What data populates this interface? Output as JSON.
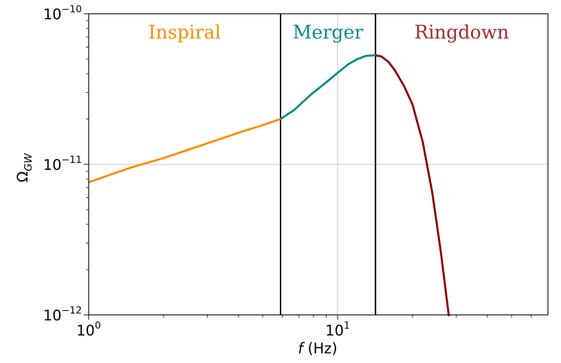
{
  "chart_data": {
    "type": "line",
    "xlabel_var": "f",
    "xlabel_unit": " (Hz)",
    "ylabel_main": "Ω",
    "ylabel_sub": "GW",
    "xscale": "log",
    "yscale": "log",
    "xlim": [
      1,
      70
    ],
    "ylim": [
      1e-12,
      1e-10
    ],
    "x_ticks": [
      {
        "value": 1,
        "base": "10",
        "exp": "0"
      },
      {
        "value": 10,
        "base": "10",
        "exp": "1"
      }
    ],
    "y_ticks": [
      {
        "value": 1e-12,
        "base": "10",
        "exp": "−12"
      },
      {
        "value": 1e-11,
        "base": "10",
        "exp": "−11"
      },
      {
        "value": 1e-10,
        "base": "10",
        "exp": "−10"
      }
    ],
    "grid": "major",
    "phase_boundaries": [
      5.9,
      14.2
    ],
    "series": [
      {
        "color": "#ff8c00",
        "x": [
          1.0,
          1.5,
          2.0,
          3.0,
          4.0,
          5.0,
          5.9
        ],
        "y": [
          7.6e-12,
          9.6e-12,
          1.1e-11,
          1.38e-11,
          1.62e-11,
          1.82e-11,
          2e-11
        ]
      },
      {
        "color": "#008b8b",
        "x": [
          5.9,
          6.7,
          7.8,
          9.0,
          10.0,
          11.0,
          12.0,
          13.0,
          14.2
        ],
        "y": [
          2e-11,
          2.3e-11,
          2.9e-11,
          3.5e-11,
          4.05e-11,
          4.6e-11,
          5e-11,
          5.25e-11,
          5.3e-11
        ]
      },
      {
        "color": "#8b0000",
        "x": [
          14.2,
          15.0,
          16.0,
          17.0,
          18.5,
          20.0,
          22.0,
          24.0,
          26.0,
          28.0
        ],
        "y": [
          5.3e-11,
          5.2e-11,
          4.8e-11,
          4.2e-11,
          3.3e-11,
          2.5e-11,
          1.4e-11,
          6.5e-12,
          2.6e-12,
          9.5e-13
        ]
      }
    ],
    "annotations": [
      {
        "text": "Inspiral",
        "color": "#ff8c00",
        "align": "center-of-region-1"
      },
      {
        "text": "Merger",
        "color": "#008b8b",
        "align": "center-of-region-2"
      },
      {
        "text": "Ringdown",
        "color": "#a52a2a",
        "align": "center-of-region-3"
      }
    ]
  }
}
